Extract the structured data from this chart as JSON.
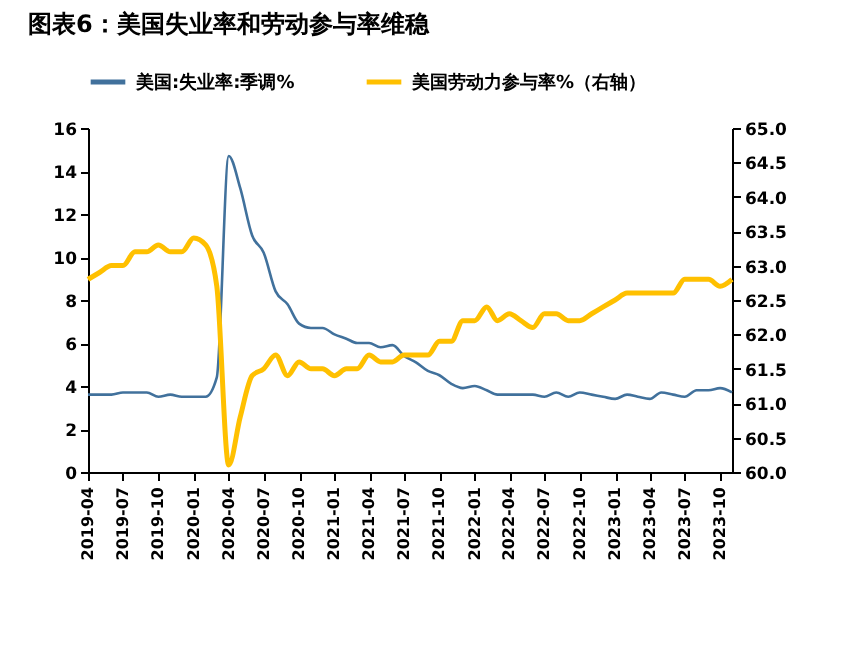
{
  "chart_data": {
    "type": "line",
    "title": "图表6：美国失业率和劳动参与率维稳",
    "x": [
      "2019-04",
      "2019-05",
      "2019-06",
      "2019-07",
      "2019-08",
      "2019-09",
      "2019-10",
      "2019-11",
      "2019-12",
      "2020-01",
      "2020-02",
      "2020-03",
      "2020-04",
      "2020-05",
      "2020-06",
      "2020-07",
      "2020-08",
      "2020-09",
      "2020-10",
      "2020-11",
      "2020-12",
      "2021-01",
      "2021-02",
      "2021-03",
      "2021-04",
      "2021-05",
      "2021-06",
      "2021-07",
      "2021-08",
      "2021-09",
      "2021-10",
      "2021-11",
      "2021-12",
      "2022-01",
      "2022-02",
      "2022-03",
      "2022-04",
      "2022-05",
      "2022-06",
      "2022-07",
      "2022-08",
      "2022-09",
      "2022-10",
      "2022-11",
      "2022-12",
      "2023-01",
      "2023-02",
      "2023-03",
      "2023-04",
      "2023-05",
      "2023-06",
      "2023-07",
      "2023-08",
      "2023-09",
      "2023-10",
      "2023-11"
    ],
    "series": [
      {
        "name": "美国:失业率:季调%",
        "color": "#41719c",
        "values": [
          3.6,
          3.6,
          3.6,
          3.7,
          3.7,
          3.7,
          3.5,
          3.6,
          3.5,
          3.5,
          3.5,
          4.4,
          14.7,
          13.2,
          11.0,
          10.2,
          8.4,
          7.8,
          6.9,
          6.7,
          6.7,
          6.4,
          6.2,
          6.0,
          6.0,
          5.8,
          5.9,
          5.4,
          5.1,
          4.7,
          4.5,
          4.1,
          3.9,
          4.0,
          3.8,
          3.6,
          3.6,
          3.6,
          3.6,
          3.5,
          3.7,
          3.5,
          3.7,
          3.6,
          3.5,
          3.4,
          3.6,
          3.5,
          3.4,
          3.7,
          3.6,
          3.5,
          3.8,
          3.8,
          3.9,
          3.7
        ]
      },
      {
        "name": "美国劳动力参与率%（右轴）",
        "color": "#ffc000",
        "axis": "y2",
        "values": [
          62.8,
          62.9,
          63.0,
          63.0,
          63.2,
          63.2,
          63.3,
          63.2,
          63.2,
          63.4,
          63.3,
          62.7,
          60.1,
          60.8,
          61.4,
          61.5,
          61.7,
          61.4,
          61.6,
          61.5,
          61.5,
          61.4,
          61.5,
          61.5,
          61.7,
          61.6,
          61.6,
          61.7,
          61.7,
          61.7,
          61.9,
          61.9,
          62.2,
          62.2,
          62.4,
          62.2,
          62.3,
          62.2,
          62.1,
          62.3,
          62.3,
          62.2,
          62.2,
          62.3,
          62.4,
          62.5,
          62.6,
          62.6,
          62.6,
          62.6,
          62.6,
          62.8,
          62.8,
          62.8,
          62.7,
          62.8
        ]
      }
    ],
    "xlim": [
      "2019-04",
      "2023-11"
    ],
    "xticks": [
      "2019-04",
      "2019-07",
      "2019-10",
      "2020-01",
      "2020-04",
      "2020-07",
      "2020-10",
      "2021-01",
      "2021-04",
      "2021-07",
      "2021-10",
      "2022-01",
      "2022-04",
      "2022-07",
      "2022-10",
      "2023-01",
      "2023-04",
      "2023-07",
      "2023-10"
    ],
    "ylim": [
      0,
      16
    ],
    "yticks": [
      0,
      2,
      4,
      6,
      8,
      10,
      12,
      14,
      16
    ],
    "y2lim": [
      60,
      65
    ],
    "y2ticks": [
      {
        "value": 60,
        "label": "60.0"
      },
      {
        "value": 60.5,
        "label": "60.5"
      },
      {
        "value": 61,
        "label": "61.0"
      },
      {
        "value": 61.5,
        "label": "61.5"
      },
      {
        "value": 62,
        "label": "62.0"
      },
      {
        "value": 62.5,
        "label": "62.5"
      },
      {
        "value": 63,
        "label": "63.0"
      },
      {
        "value": 63.5,
        "label": "63.5"
      },
      {
        "value": 64,
        "label": "64.0"
      },
      {
        "value": 64.5,
        "label": "64.5"
      },
      {
        "value": 65,
        "label": "65.0"
      }
    ],
    "legend": "top",
    "grid": false
  }
}
